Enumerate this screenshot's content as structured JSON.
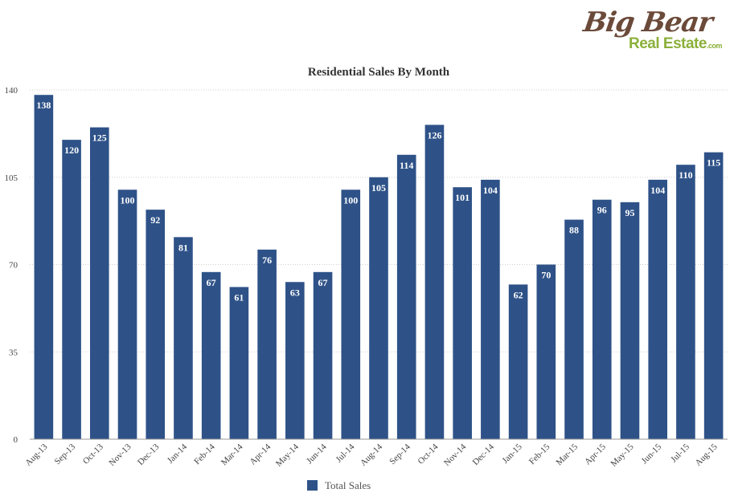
{
  "logo": {
    "line1": "Big Bear",
    "line2": "Real Estate",
    "suffix": ".com",
    "colors": {
      "brown": "#6b4a3a",
      "green": "#8bb03a"
    }
  },
  "chart_data": {
    "type": "bar",
    "title": "Residential Sales By Month",
    "xlabel": "",
    "ylabel": "",
    "ylim": [
      0,
      140
    ],
    "yticks": [
      0,
      35,
      70,
      105,
      140
    ],
    "grid": true,
    "legend_position": "bottom",
    "bar_color": "#2e5288",
    "categories": [
      "Aug-13",
      "Sep-13",
      "Oct-13",
      "Nov-13",
      "Dec-13",
      "Jan-14",
      "Feb-14",
      "Mar-14",
      "Apr-14",
      "May-14",
      "Jun-14",
      "Jul-14",
      "Aug-14",
      "Sep-14",
      "Oct-14",
      "Nov-14",
      "Dec-14",
      "Jan-15",
      "Feb-15",
      "Mar-15",
      "Apr-15",
      "May-15",
      "Jun-15",
      "Jul-15",
      "Aug-15"
    ],
    "series": [
      {
        "name": "Total Sales",
        "values": [
          138,
          120,
          125,
          100,
          92,
          81,
          67,
          61,
          76,
          63,
          67,
          100,
          105,
          114,
          126,
          101,
          104,
          62,
          70,
          88,
          96,
          95,
          104,
          110,
          115
        ]
      }
    ]
  }
}
